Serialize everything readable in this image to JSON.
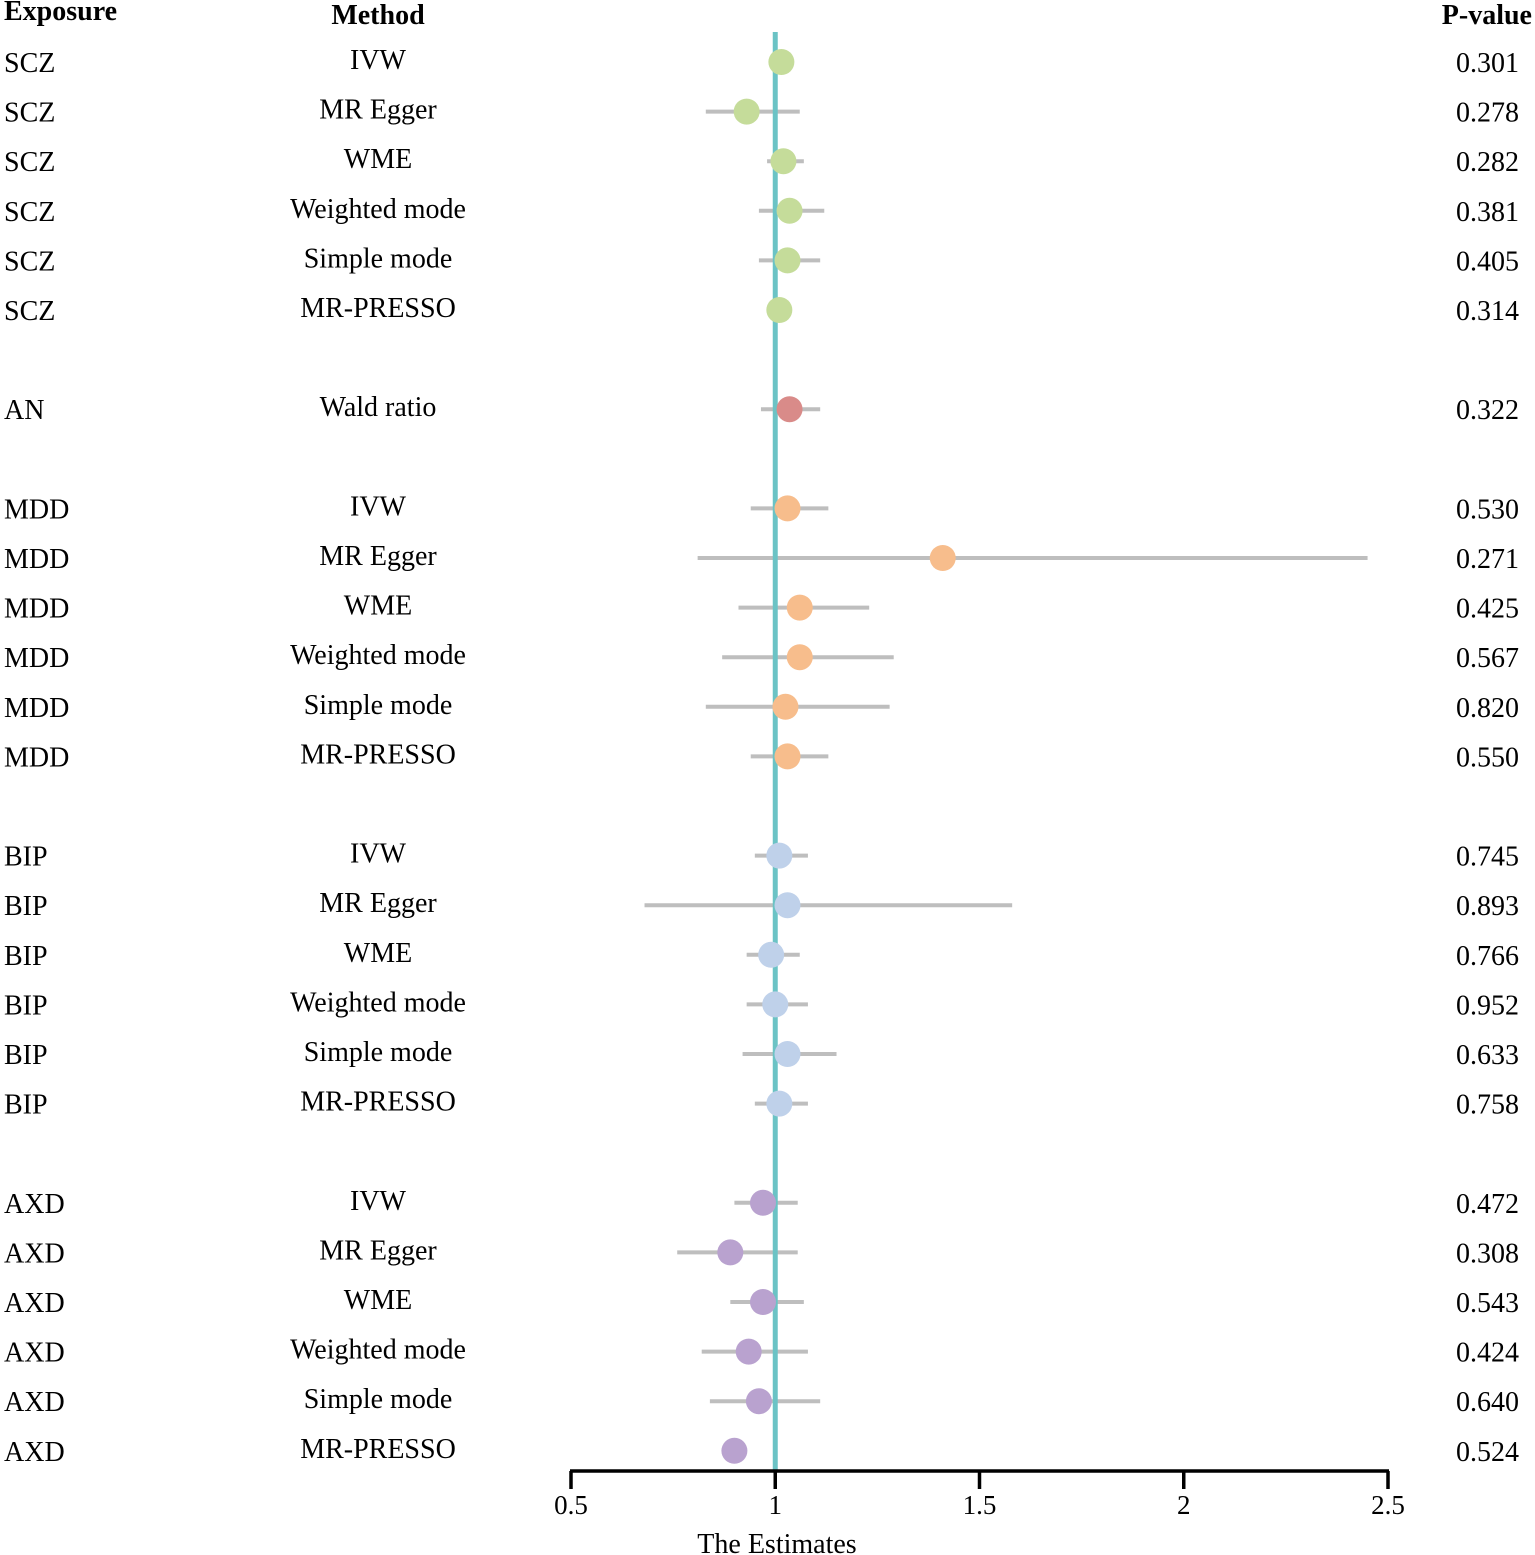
{
  "chart_data": {
    "type": "forest",
    "columns": {
      "exposure": "Exposure",
      "method": "Method",
      "pvalue": "P-value"
    },
    "xlabel": "The Estimates",
    "xlim": [
      0.5,
      2.5
    ],
    "xticks": [
      "0.5",
      "1",
      "1.5",
      "2",
      "2.5"
    ],
    "reference_line": 1,
    "colors": {
      "SCZ": "#c5dc9a",
      "AN": "#d98b89",
      "MDD": "#f7bd8c",
      "BIP": "#bfd1ea",
      "AXD": "#b9a2cf",
      "ci": "#bebebe",
      "reference": "#6bc3c5"
    },
    "rows": [
      {
        "exposure": "SCZ",
        "method": "IVW",
        "estimate": 1.015,
        "lower": 1.0,
        "upper": 1.03,
        "pvalue": "0.301"
      },
      {
        "exposure": "SCZ",
        "method": "MR Egger",
        "estimate": 0.93,
        "lower": 0.83,
        "upper": 1.06,
        "pvalue": "0.278"
      },
      {
        "exposure": "SCZ",
        "method": "WME",
        "estimate": 1.02,
        "lower": 0.98,
        "upper": 1.07,
        "pvalue": "0.282"
      },
      {
        "exposure": "SCZ",
        "method": "Weighted mode",
        "estimate": 1.035,
        "lower": 0.96,
        "upper": 1.12,
        "pvalue": "0.381"
      },
      {
        "exposure": "SCZ",
        "method": "Simple mode",
        "estimate": 1.03,
        "lower": 0.96,
        "upper": 1.11,
        "pvalue": "0.405"
      },
      {
        "exposure": "SCZ",
        "method": "MR-PRESSO",
        "estimate": 1.01,
        "lower": 0.995,
        "upper": 1.03,
        "pvalue": "0.314"
      },
      {
        "exposure": "AN",
        "method": "Wald ratio",
        "estimate": 1.035,
        "lower": 0.965,
        "upper": 1.11,
        "pvalue": "0.322",
        "gap_before": true
      },
      {
        "exposure": "MDD",
        "method": "IVW",
        "estimate": 1.03,
        "lower": 0.94,
        "upper": 1.13,
        "pvalue": "0.530",
        "gap_before": true
      },
      {
        "exposure": "MDD",
        "method": "MR Egger",
        "estimate": 1.41,
        "lower": 0.81,
        "upper": 2.45,
        "pvalue": "0.271"
      },
      {
        "exposure": "MDD",
        "method": "WME",
        "estimate": 1.06,
        "lower": 0.91,
        "upper": 1.23,
        "pvalue": "0.425"
      },
      {
        "exposure": "MDD",
        "method": "Weighted mode",
        "estimate": 1.06,
        "lower": 0.87,
        "upper": 1.29,
        "pvalue": "0.567"
      },
      {
        "exposure": "MDD",
        "method": "Simple mode",
        "estimate": 1.025,
        "lower": 0.83,
        "upper": 1.28,
        "pvalue": "0.820"
      },
      {
        "exposure": "MDD",
        "method": "MR-PRESSO",
        "estimate": 1.03,
        "lower": 0.94,
        "upper": 1.13,
        "pvalue": "0.550"
      },
      {
        "exposure": "BIP",
        "method": "IVW",
        "estimate": 1.01,
        "lower": 0.95,
        "upper": 1.08,
        "pvalue": "0.745",
        "gap_before": true
      },
      {
        "exposure": "BIP",
        "method": "MR Egger",
        "estimate": 1.03,
        "lower": 0.68,
        "upper": 1.58,
        "pvalue": "0.893"
      },
      {
        "exposure": "BIP",
        "method": "WME",
        "estimate": 0.99,
        "lower": 0.93,
        "upper": 1.06,
        "pvalue": "0.766"
      },
      {
        "exposure": "BIP",
        "method": "Weighted mode",
        "estimate": 1.0,
        "lower": 0.93,
        "upper": 1.08,
        "pvalue": "0.952"
      },
      {
        "exposure": "BIP",
        "method": "Simple mode",
        "estimate": 1.03,
        "lower": 0.92,
        "upper": 1.15,
        "pvalue": "0.633"
      },
      {
        "exposure": "BIP",
        "method": "MR-PRESSO",
        "estimate": 1.01,
        "lower": 0.95,
        "upper": 1.08,
        "pvalue": "0.758"
      },
      {
        "exposure": "AXD",
        "method": "IVW",
        "estimate": 0.97,
        "lower": 0.9,
        "upper": 1.055,
        "pvalue": "0.472",
        "gap_before": true
      },
      {
        "exposure": "AXD",
        "method": "MR Egger",
        "estimate": 0.89,
        "lower": 0.76,
        "upper": 1.055,
        "pvalue": "0.308"
      },
      {
        "exposure": "AXD",
        "method": "WME",
        "estimate": 0.97,
        "lower": 0.89,
        "upper": 1.07,
        "pvalue": "0.543"
      },
      {
        "exposure": "AXD",
        "method": "Weighted mode",
        "estimate": 0.935,
        "lower": 0.82,
        "upper": 1.08,
        "pvalue": "0.424"
      },
      {
        "exposure": "AXD",
        "method": "Simple mode",
        "estimate": 0.96,
        "lower": 0.84,
        "upper": 1.11,
        "pvalue": "0.640"
      },
      {
        "exposure": "AXD",
        "method": "MR-PRESSO",
        "estimate": 0.9,
        "lower": 0.89,
        "upper": 0.91,
        "pvalue": "0.524"
      }
    ]
  }
}
